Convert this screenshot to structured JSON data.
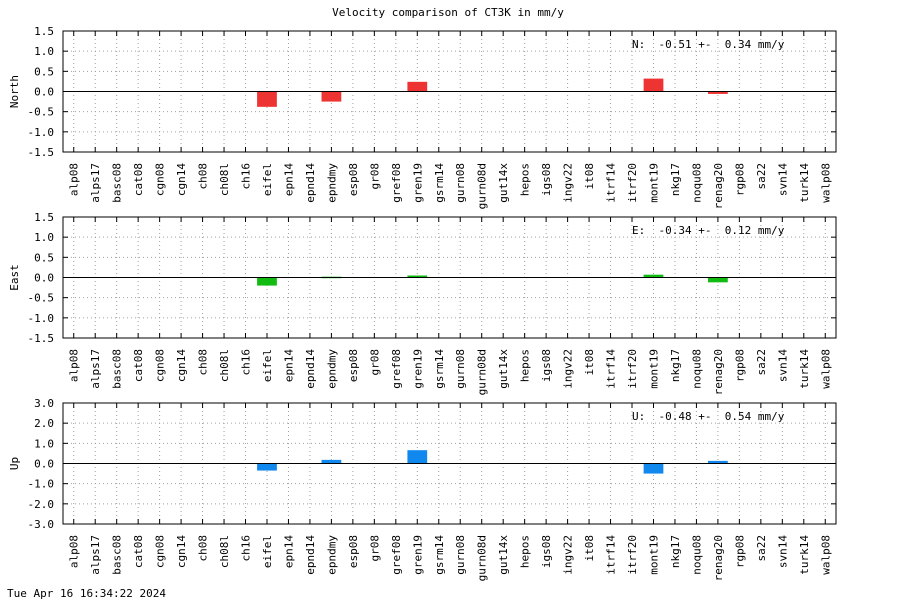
{
  "title": "Velocity comparison of CT3K in mm/y",
  "timestamp": "Tue Apr 16 16:34:22 2024",
  "chart_data": [
    {
      "type": "bar",
      "ylabel": "North",
      "ylim": [
        -1.5,
        1.5
      ],
      "yticks": [
        "1.5",
        "1.0",
        "0.5",
        "0.0",
        "-0.5",
        "-1.0",
        "-1.5"
      ],
      "ytick_values": [
        1.5,
        1.0,
        0.5,
        0.0,
        -0.5,
        -1.0,
        -1.5
      ],
      "annotation": "N:  -0.51 +-  0.34 mm/y",
      "color": "#ee3333",
      "grid": true,
      "categories": [
        "alp08",
        "alps17",
        "basc08",
        "cat08",
        "cgn08",
        "cgn14",
        "ch08",
        "ch08l",
        "ch16",
        "eifel",
        "epn14",
        "epnd14",
        "epndmy",
        "esp08",
        "gr08",
        "gref08",
        "gren19",
        "gsrm14",
        "gurn08",
        "gurn08d",
        "gut14x",
        "hepos",
        "igs08",
        "ingv22",
        "it08",
        "itrf14",
        "itrf20",
        "mont19",
        "nkg17",
        "noqu08",
        "renag20",
        "rgp08",
        "sa22",
        "svn14",
        "turk14",
        "walp08"
      ],
      "values": [
        0,
        0,
        0,
        0,
        0,
        0,
        0,
        0,
        0,
        -0.38,
        0,
        0,
        -0.25,
        0,
        0,
        0,
        0.24,
        0,
        0,
        0,
        0,
        0,
        0,
        0,
        0,
        0,
        0,
        0.32,
        0,
        0,
        -0.06,
        0,
        0,
        0,
        0,
        0
      ]
    },
    {
      "type": "bar",
      "ylabel": "East",
      "ylim": [
        -1.5,
        1.5
      ],
      "yticks": [
        "1.5",
        "1.0",
        "0.5",
        "0.0",
        "-0.5",
        "-1.0",
        "-1.5"
      ],
      "ytick_values": [
        1.5,
        1.0,
        0.5,
        0.0,
        -0.5,
        -1.0,
        -1.5
      ],
      "annotation": "E:  -0.34 +-  0.12 mm/y",
      "color": "#11bb11",
      "grid": true,
      "categories": [
        "alp08",
        "alps17",
        "basc08",
        "cat08",
        "cgn08",
        "cgn14",
        "ch08",
        "ch08l",
        "ch16",
        "eifel",
        "epn14",
        "epnd14",
        "epndmy",
        "esp08",
        "gr08",
        "gref08",
        "gren19",
        "gsrm14",
        "gurn08",
        "gurn08d",
        "gut14x",
        "hepos",
        "igs08",
        "ingv22",
        "it08",
        "itrf14",
        "itrf20",
        "mont19",
        "nkg17",
        "noqu08",
        "renag20",
        "rgp08",
        "sa22",
        "svn14",
        "turk14",
        "walp08"
      ],
      "values": [
        0,
        0,
        0,
        0,
        0,
        0,
        0,
        0,
        0,
        -0.2,
        0,
        0,
        0.02,
        0,
        0,
        0,
        0.05,
        0,
        0,
        0,
        0,
        0,
        0,
        0,
        0,
        0,
        0,
        0.07,
        0,
        0,
        -0.12,
        0,
        0,
        0,
        0,
        0
      ]
    },
    {
      "type": "bar",
      "ylabel": "Up",
      "ylim": [
        -3.0,
        3.0
      ],
      "yticks": [
        "3.0",
        "2.0",
        "1.0",
        "0.0",
        "-1.0",
        "-2.0",
        "-3.0"
      ],
      "ytick_values": [
        3.0,
        2.0,
        1.0,
        0.0,
        -1.0,
        -2.0,
        -3.0
      ],
      "annotation": "U:  -0.48 +-  0.54 mm/y",
      "color": "#1188ee",
      "grid": true,
      "categories": [
        "alp08",
        "alps17",
        "basc08",
        "cat08",
        "cgn08",
        "cgn14",
        "ch08",
        "ch08l",
        "ch16",
        "eifel",
        "epn14",
        "epnd14",
        "epndmy",
        "esp08",
        "gr08",
        "gref08",
        "gren19",
        "gsrm14",
        "gurn08",
        "gurn08d",
        "gut14x",
        "hepos",
        "igs08",
        "ingv22",
        "it08",
        "itrf14",
        "itrf20",
        "mont19",
        "nkg17",
        "noqu08",
        "renag20",
        "rgp08",
        "sa22",
        "svn14",
        "turk14",
        "walp08"
      ],
      "values": [
        0,
        0,
        0,
        0,
        0,
        0,
        0,
        0,
        0,
        -0.35,
        0,
        0,
        0.18,
        0,
        0,
        0,
        0.66,
        0,
        0,
        0,
        0,
        0,
        0,
        0,
        0,
        0,
        0,
        -0.5,
        0,
        0,
        0.13,
        0,
        0,
        0,
        0,
        0
      ]
    }
  ]
}
